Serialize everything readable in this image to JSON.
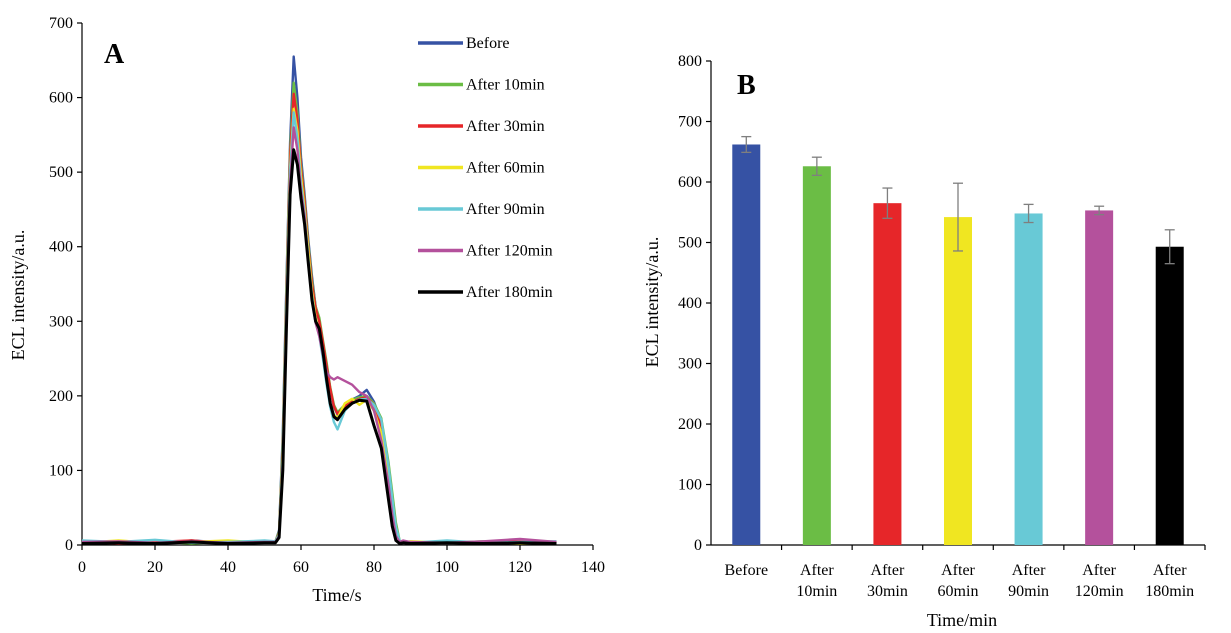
{
  "colors": {
    "before": "#3652a4",
    "after10": "#6bbd45",
    "after30": "#e62629",
    "after60": "#f0e621",
    "after90": "#68c9d6",
    "after120": "#b4519c",
    "after180": "#000000",
    "errorbar": "#7f7f7f"
  },
  "chart_data": [
    {
      "type": "line",
      "panel": "A",
      "xlabel": "Time/s",
      "ylabel": "ECL intensity/a.u.",
      "xlim": [
        0,
        140
      ],
      "ylim": [
        0,
        700
      ],
      "x_ticks": [
        "0",
        "20",
        "40",
        "60",
        "80",
        "100",
        "120",
        "140"
      ],
      "y_ticks": [
        "0",
        "100",
        "200",
        "300",
        "400",
        "500",
        "600",
        "700"
      ],
      "legend": [
        "Before",
        "After 10min",
        "After 30min",
        "After 60min",
        "After 90min",
        "After 120min",
        "After 180min"
      ],
      "series": [
        {
          "name": "Before",
          "color_key": "before",
          "x": [
            0,
            10,
            20,
            30,
            40,
            50,
            53,
            54,
            55,
            56,
            57,
            58,
            59,
            60,
            61,
            62,
            63,
            64,
            65,
            66,
            67,
            68,
            69,
            70,
            72,
            74,
            76,
            78,
            80,
            82,
            84,
            85,
            86,
            87,
            88,
            90,
            100,
            110,
            120,
            130
          ],
          "y": [
            3,
            5,
            2,
            6,
            3,
            4,
            4,
            20,
            150,
            350,
            540,
            655,
            600,
            520,
            470,
            410,
            360,
            320,
            300,
            270,
            240,
            210,
            185,
            175,
            185,
            195,
            200,
            208,
            192,
            165,
            100,
            60,
            25,
            5,
            4,
            3,
            5,
            2,
            4,
            3
          ]
        },
        {
          "name": "After 10min",
          "color_key": "after10",
          "x": [
            0,
            10,
            20,
            30,
            40,
            50,
            53,
            54,
            55,
            56,
            57,
            58,
            59,
            60,
            61,
            62,
            63,
            64,
            65,
            66,
            67,
            68,
            69,
            70,
            72,
            74,
            76,
            78,
            80,
            82,
            84,
            85,
            86,
            87,
            88,
            90,
            100,
            110,
            120,
            130
          ],
          "y": [
            4,
            3,
            5,
            2,
            5,
            3,
            5,
            18,
            140,
            340,
            530,
            620,
            580,
            510,
            465,
            405,
            355,
            320,
            305,
            275,
            245,
            212,
            188,
            178,
            188,
            195,
            198,
            200,
            190,
            170,
            110,
            70,
            30,
            6,
            4,
            4,
            3,
            5,
            3,
            4
          ]
        },
        {
          "name": "After 30min",
          "color_key": "after30",
          "x": [
            0,
            10,
            20,
            30,
            40,
            50,
            53,
            54,
            55,
            56,
            57,
            58,
            59,
            60,
            61,
            62,
            63,
            64,
            65,
            66,
            67,
            68,
            69,
            70,
            72,
            74,
            76,
            78,
            80,
            82,
            84,
            85,
            86,
            87,
            88,
            90,
            100,
            110,
            120,
            130
          ],
          "y": [
            5,
            2,
            4,
            6,
            2,
            5,
            4,
            16,
            130,
            330,
            520,
            605,
            570,
            505,
            460,
            400,
            350,
            318,
            300,
            272,
            240,
            210,
            186,
            176,
            186,
            192,
            196,
            198,
            188,
            160,
            95,
            55,
            20,
            5,
            5,
            3,
            4,
            3,
            5,
            3
          ]
        },
        {
          "name": "After 60min",
          "color_key": "after60",
          "x": [
            0,
            10,
            20,
            30,
            40,
            50,
            53,
            54,
            55,
            56,
            57,
            58,
            59,
            60,
            61,
            62,
            63,
            64,
            65,
            66,
            67,
            68,
            69,
            70,
            72,
            74,
            76,
            78,
            80,
            82,
            84,
            85,
            86,
            87,
            88,
            90,
            100,
            110,
            120,
            130
          ],
          "y": [
            3,
            6,
            3,
            4,
            6,
            3,
            3,
            15,
            125,
            320,
            505,
            585,
            555,
            495,
            450,
            395,
            340,
            305,
            285,
            255,
            220,
            190,
            175,
            170,
            190,
            196,
            188,
            195,
            180,
            150,
            90,
            50,
            18,
            4,
            3,
            5,
            3,
            4,
            2,
            4
          ]
        },
        {
          "name": "After 90min",
          "color_key": "after90",
          "x": [
            0,
            10,
            20,
            30,
            40,
            50,
            53,
            54,
            55,
            56,
            57,
            58,
            59,
            60,
            61,
            62,
            63,
            64,
            65,
            66,
            67,
            68,
            69,
            70,
            72,
            74,
            76,
            78,
            80,
            82,
            84,
            85,
            86,
            87,
            88,
            90,
            100,
            110,
            120,
            130
          ],
          "y": [
            6,
            4,
            7,
            3,
            4,
            6,
            5,
            14,
            120,
            315,
            500,
            580,
            545,
            485,
            445,
            385,
            335,
            300,
            280,
            250,
            215,
            185,
            165,
            155,
            180,
            190,
            195,
            196,
            188,
            168,
            105,
            62,
            24,
            6,
            4,
            3,
            6,
            3,
            4,
            5
          ]
        },
        {
          "name": "After 120min",
          "color_key": "after120",
          "x": [
            0,
            10,
            20,
            30,
            40,
            50,
            53,
            54,
            55,
            56,
            57,
            58,
            59,
            60,
            61,
            62,
            63,
            64,
            65,
            66,
            67,
            68,
            69,
            70,
            72,
            74,
            76,
            78,
            80,
            82,
            84,
            85,
            86,
            87,
            88,
            90,
            100,
            110,
            120,
            130
          ],
          "y": [
            4,
            5,
            3,
            5,
            3,
            4,
            4,
            12,
            110,
            300,
            485,
            560,
            530,
            475,
            440,
            380,
            330,
            298,
            280,
            255,
            232,
            225,
            222,
            225,
            220,
            215,
            205,
            200,
            180,
            140,
            80,
            40,
            12,
            4,
            6,
            4,
            3,
            5,
            8,
            4
          ]
        },
        {
          "name": "After 180min",
          "color_key": "after180",
          "x": [
            0,
            10,
            20,
            30,
            40,
            50,
            53,
            54,
            55,
            56,
            57,
            58,
            59,
            60,
            61,
            62,
            63,
            64,
            65,
            66,
            67,
            68,
            69,
            70,
            72,
            74,
            76,
            78,
            80,
            82,
            84,
            85,
            86,
            87,
            88,
            90,
            100,
            110,
            120,
            130
          ],
          "y": [
            2,
            3,
            2,
            4,
            2,
            3,
            3,
            10,
            100,
            290,
            470,
            530,
            510,
            465,
            430,
            378,
            328,
            300,
            290,
            260,
            222,
            190,
            172,
            168,
            182,
            190,
            194,
            193,
            160,
            130,
            60,
            25,
            6,
            2,
            3,
            2,
            3,
            2,
            3,
            2
          ]
        }
      ]
    },
    {
      "type": "bar",
      "panel": "B",
      "xlabel": "Time/min",
      "ylabel": "ECL intensity/a.u.",
      "ylim": [
        0,
        800
      ],
      "y_ticks": [
        "0",
        "100",
        "200",
        "300",
        "400",
        "500",
        "600",
        "700",
        "800"
      ],
      "categories": [
        [
          "Before"
        ],
        [
          "After",
          "10min"
        ],
        [
          "After",
          "30min"
        ],
        [
          "After",
          "60min"
        ],
        [
          "After",
          "90min"
        ],
        [
          "After",
          "120min"
        ],
        [
          "After",
          "180min"
        ]
      ],
      "values": [
        662,
        626,
        565,
        542,
        548,
        553,
        493
      ],
      "errors": [
        13,
        15,
        25,
        56,
        15,
        7,
        28
      ],
      "color_keys": [
        "before",
        "after10",
        "after30",
        "after60",
        "after90",
        "after120",
        "after180"
      ]
    }
  ]
}
